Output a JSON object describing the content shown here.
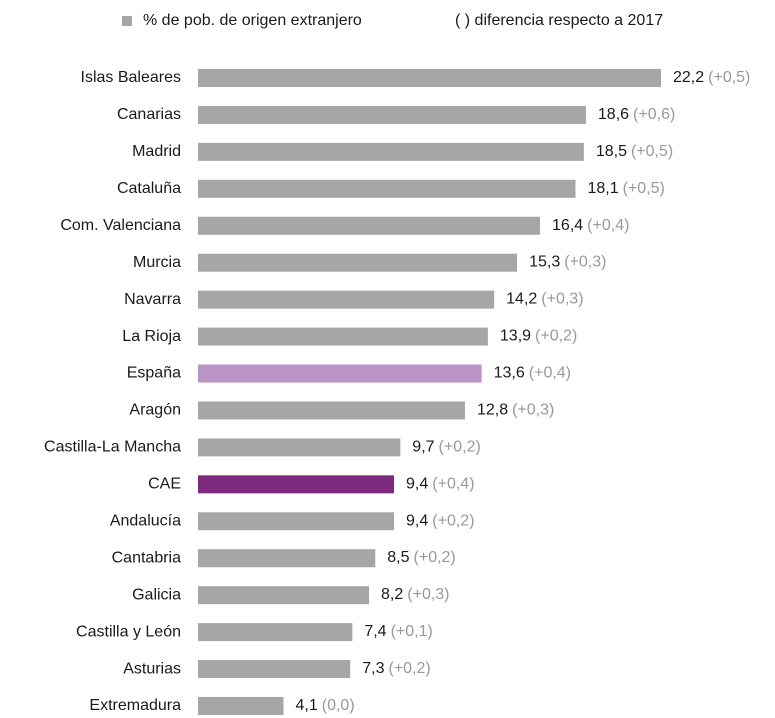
{
  "chart_data": {
    "type": "bar",
    "orientation": "horizontal",
    "legend": [
      "% de pob. de origen extranjero",
      "( ) diferencia respecto a 2017"
    ],
    "legend_color": "#a6a6a6",
    "categories": [
      "Islas Baleares",
      "Canarias",
      "Madrid",
      "Cataluña",
      "Com. Valenciana",
      "Murcia",
      "Navarra",
      "La Rioja",
      "España",
      "Aragón",
      "Castilla-La Mancha",
      "CAE",
      "Andalucía",
      "Cantabria",
      "Galicia",
      "Castilla y León",
      "Asturias",
      "Extremadura"
    ],
    "values": [
      22.2,
      18.6,
      18.5,
      18.1,
      16.4,
      15.3,
      14.2,
      13.9,
      13.6,
      12.8,
      9.7,
      9.4,
      9.4,
      8.5,
      8.2,
      7.4,
      7.3,
      4.1
    ],
    "value_labels": [
      "22,2",
      "18,6",
      "18,5",
      "18,1",
      "16,4",
      "15,3",
      "14,2",
      "13,9",
      "13,6",
      "12,8",
      "9,7",
      "9,4",
      "9,4",
      "8,5",
      "8,2",
      "7,4",
      "7,3",
      "4,1"
    ],
    "differences": [
      0.5,
      0.6,
      0.5,
      0.5,
      0.4,
      0.3,
      0.3,
      0.2,
      0.4,
      0.3,
      0.2,
      0.4,
      0.2,
      0.2,
      0.3,
      0.1,
      0.2,
      0
    ],
    "difference_labels": [
      "(+0,5)",
      "(+0,6)",
      "(+0,5)",
      "(+0,5)",
      "(+0,4)",
      "(+0,3)",
      "(+0,3)",
      "(+0,2)",
      "(+0,4)",
      "(+0,3)",
      "(+0,2)",
      "(+0,4)",
      "(+0,2)",
      "(+0,2)",
      "(+0,3)",
      "(+0,1)",
      "(+0,2)",
      "(0,0)"
    ],
    "colors": [
      "#a6a6a6",
      "#a6a6a6",
      "#a6a6a6",
      "#a6a6a6",
      "#a6a6a6",
      "#a6a6a6",
      "#a6a6a6",
      "#a6a6a6",
      "#b895c6",
      "#a6a6a6",
      "#a6a6a6",
      "#7b2a7f",
      "#a6a6a6",
      "#a6a6a6",
      "#a6a6a6",
      "#a6a6a6",
      "#a6a6a6",
      "#a6a6a6"
    ]
  }
}
